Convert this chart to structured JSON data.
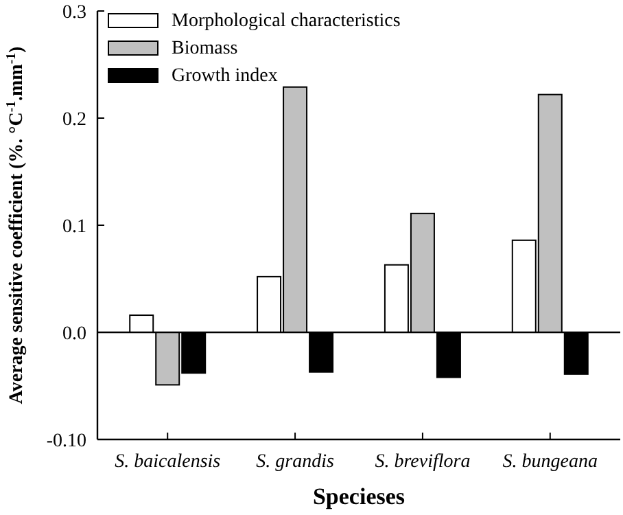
{
  "chart_data": {
    "type": "bar",
    "xlabel": "Specieses",
    "ylabel": "Average sensitive coefficient (%. °C$^{-1}$.mm$^{-1}$)",
    "categories": [
      "S. baicalensis",
      "S. grandis",
      "S. breviflora",
      "S. bungeana"
    ],
    "series": [
      {
        "name": "Morphological characteristics",
        "color": "#ffffff",
        "values": [
          0.016,
          0.052,
          0.063,
          0.086
        ]
      },
      {
        "name": "Biomass",
        "color": "#c0c0c0",
        "values": [
          -0.049,
          0.229,
          0.111,
          0.222
        ]
      },
      {
        "name": "Growth index",
        "color": "#000000",
        "values": [
          -0.038,
          -0.037,
          -0.042,
          -0.039
        ]
      }
    ],
    "ylim": [
      -0.1,
      0.3
    ],
    "yticks": [
      {
        "value": -0.1,
        "label": "-0.10"
      },
      {
        "value": 0,
        "label": "0.0"
      },
      {
        "value": 0.1,
        "label": "0.1"
      },
      {
        "value": 0.2,
        "label": "0.2"
      },
      {
        "value": 0.3,
        "label": "0.3"
      }
    ],
    "ref_lines": [
      {
        "axis": "y",
        "value": 0
      }
    ],
    "legend": "top left",
    "grid": false
  }
}
